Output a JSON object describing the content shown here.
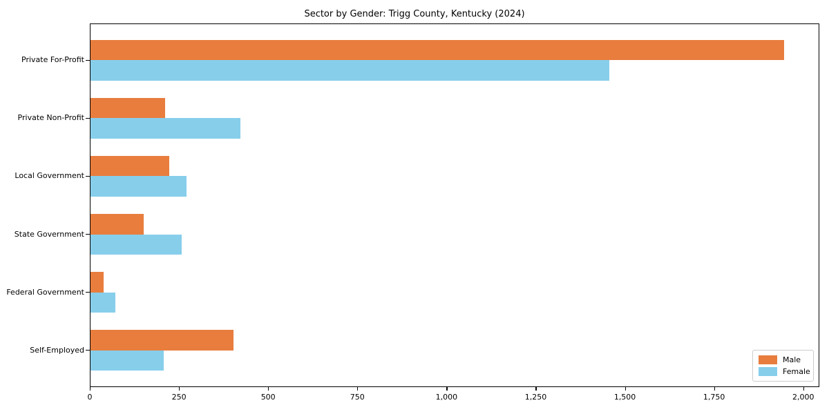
{
  "chart_data": {
    "type": "bar",
    "orientation": "horizontal",
    "title": "Sector by Gender: Trigg County, Kentucky (2024)",
    "categories": [
      "Private For-Profit",
      "Private Non-Profit",
      "Local Government",
      "State Government",
      "Federal Government",
      "Self-Employed"
    ],
    "series": [
      {
        "name": "Male",
        "color": "#e87d3e",
        "values": [
          1945,
          210,
          220,
          150,
          37,
          400
        ]
      },
      {
        "name": "Female",
        "color": "#87ceeb",
        "values": [
          1455,
          420,
          270,
          255,
          70,
          205
        ]
      }
    ],
    "xlabel": "",
    "ylabel": "",
    "xlim": [
      0,
      2045
    ],
    "xticks": [
      0,
      250,
      500,
      750,
      1000,
      1250,
      1500,
      1750,
      2000
    ],
    "xtick_labels": [
      "0",
      "250",
      "500",
      "750",
      "1,000",
      "1,250",
      "1,500",
      "1,750",
      "2,000"
    ],
    "grid": false,
    "legend": {
      "position": "lower right"
    }
  }
}
